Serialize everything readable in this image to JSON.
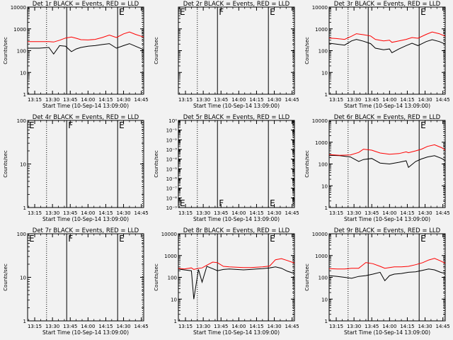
{
  "x_axis": {
    "ticks": [
      "13:15",
      "13:30",
      "13:45",
      "14:00",
      "14:15",
      "14:30",
      "14:45"
    ],
    "label": "Start Time (10-Sep-14 13:09:00)"
  },
  "colors": {
    "events": "#000000",
    "lld": "#ff0000",
    "background": "#f2f2f2"
  },
  "chart_data": [
    {
      "type": "line",
      "title": "Det 1r BLACK = Events, RED = LLD",
      "ylabel": "Counts/sec",
      "yscale": "log",
      "ylim": [
        1,
        10000
      ],
      "ytick_labels": [
        "1",
        "10",
        "100",
        "1000",
        "10000"
      ],
      "markers": [
        "F",
        "E"
      ],
      "x": [
        "13:09",
        "13:18",
        "13:19",
        "13:27",
        "13:31",
        "13:36",
        "13:41",
        "13:46",
        "13:50",
        "13:54",
        "14:00",
        "14:06",
        "14:12",
        "14:18",
        "14:24",
        "14:30",
        "14:35",
        "14:40",
        "14:47"
      ],
      "series": [
        {
          "name": "Events",
          "values": [
            130,
            130,
            130,
            140,
            70,
            170,
            160,
            90,
            120,
            140,
            160,
            170,
            190,
            210,
            130,
            170,
            210,
            160,
            110
          ]
        },
        {
          "name": "LLD",
          "values": [
            260,
            260,
            260,
            260,
            250,
            300,
            380,
            420,
            370,
            320,
            310,
            330,
            400,
            520,
            400,
            590,
            720,
            560,
            420
          ]
        }
      ]
    },
    {
      "type": "line",
      "title": "Det 2r BLACK = Events, RED = LLD",
      "ylabel": "Counts/sec",
      "yscale": "log",
      "ylim": [
        1,
        10000
      ],
      "ytick_labels": [],
      "markers": [
        "E",
        "F",
        "E"
      ],
      "x": [],
      "series": []
    },
    {
      "type": "line",
      "title": "Det 3r BLACK = Events, RED = LLD",
      "ylabel": "Counts/sec",
      "yscale": "log",
      "ylim": [
        1,
        10000
      ],
      "ytick_labels": [
        "1",
        "10",
        "100",
        "1000",
        "10000"
      ],
      "markers": [
        "E"
      ],
      "x": [
        "13:09",
        "13:15",
        "13:22",
        "13:28",
        "13:32",
        "13:38",
        "13:44",
        "13:48",
        "13:55",
        "14:00",
        "14:02",
        "14:08",
        "14:14",
        "14:19",
        "14:24",
        "14:31",
        "14:36",
        "14:42",
        "14:47"
      ],
      "series": [
        {
          "name": "Events",
          "values": [
            220,
            200,
            180,
            280,
            330,
            270,
            210,
            130,
            110,
            120,
            80,
            120,
            170,
            220,
            170,
            260,
            320,
            260,
            200
          ]
        },
        {
          "name": "LLD",
          "values": [
            380,
            360,
            330,
            460,
            600,
            540,
            470,
            330,
            280,
            300,
            240,
            280,
            330,
            400,
            370,
            560,
            720,
            600,
            460
          ]
        }
      ]
    },
    {
      "type": "line",
      "title": "Det 4r BLACK = Events, RED = LLD",
      "ylabel": "Counts/sec",
      "yscale": "log",
      "ylim": [
        1,
        100
      ],
      "ytick_labels": [
        "1",
        "10",
        "100"
      ],
      "markers": [
        "E",
        "F",
        "E"
      ],
      "x": [],
      "series": []
    },
    {
      "type": "line",
      "title": "Det 5r BLACK = Events, RED = LLD",
      "ylabel": "Counts/sec",
      "yscale": "log",
      "ylim": [
        1e-09,
        1
      ],
      "ytick_labels": [
        "10⁰",
        "10⁻¹",
        "10⁻²",
        "10⁻³",
        "10⁻⁴",
        "10⁻⁵",
        "10⁻⁶",
        "10⁻⁷",
        "10⁻⁸",
        "10⁻⁹"
      ],
      "markers": [
        "E",
        "F",
        "E"
      ],
      "x": [],
      "series": []
    },
    {
      "type": "line",
      "title": "Det 6r BLACK = Events, RED = LLD",
      "ylabel": "Counts/sec",
      "yscale": "log",
      "ylim": [
        1,
        10000
      ],
      "ytick_labels": [
        "1",
        "10",
        "100",
        "1000",
        "10000"
      ],
      "markers": [
        "E"
      ],
      "x": [
        "13:09",
        "13:18",
        "13:27",
        "13:34",
        "13:38",
        "13:45",
        "13:52",
        "14:00",
        "14:08",
        "14:14",
        "14:16",
        "14:22",
        "14:27",
        "14:32",
        "14:38",
        "14:44",
        "14:47"
      ],
      "series": [
        {
          "name": "Events",
          "values": [
            250,
            240,
            210,
            130,
            160,
            180,
            110,
            100,
            120,
            140,
            70,
            130,
            170,
            210,
            240,
            180,
            140
          ]
        },
        {
          "name": "LLD",
          "values": [
            270,
            250,
            260,
            340,
            480,
            430,
            320,
            280,
            300,
            360,
            330,
            400,
            480,
            640,
            760,
            560,
            430
          ]
        }
      ]
    },
    {
      "type": "line",
      "title": "Det 7r BLACK = Events, RED = LLD",
      "ylabel": "Counts/sec",
      "yscale": "log",
      "ylim": [
        1,
        100
      ],
      "ytick_labels": [
        "1",
        "10",
        "100"
      ],
      "markers": [
        "E",
        "F",
        "E"
      ],
      "x": [],
      "series": []
    },
    {
      "type": "line",
      "title": "Det 8r BLACK = Events, RED = LLD",
      "ylabel": "Counts/sec",
      "yscale": "log",
      "ylim": [
        1,
        10000
      ],
      "ytick_labels": [
        "1",
        "10",
        "100",
        "1000",
        "10000"
      ],
      "markers": [
        "E"
      ],
      "x": [
        "13:09",
        "13:14",
        "13:20",
        "13:22",
        "13:26",
        "13:29",
        "13:33",
        "13:38",
        "13:42",
        "13:47",
        "13:52",
        "13:58",
        "14:04",
        "14:10",
        "14:15",
        "14:20",
        "14:26",
        "14:31",
        "14:36",
        "14:41",
        "14:47"
      ],
      "series": [
        {
          "name": "Events",
          "values": [
            240,
            220,
            200,
            10,
            230,
            60,
            320,
            250,
            200,
            230,
            240,
            230,
            220,
            230,
            240,
            250,
            270,
            300,
            260,
            190,
            150
          ]
        },
        {
          "name": "LLD",
          "values": [
            260,
            240,
            270,
            230,
            260,
            270,
            360,
            500,
            470,
            320,
            300,
            290,
            280,
            280,
            290,
            300,
            330,
            640,
            720,
            590,
            450
          ]
        }
      ]
    },
    {
      "type": "line",
      "title": "Det 9r BLACK = Events, RED = LLD",
      "ylabel": "Counts/sec",
      "yscale": "log",
      "ylim": [
        1,
        10000
      ],
      "ytick_labels": [
        "1",
        "10",
        "100",
        "1000",
        "10000"
      ],
      "markers": [
        "E"
      ],
      "x": [
        "13:09",
        "13:16",
        "13:22",
        "13:28",
        "13:34",
        "13:40",
        "13:46",
        "13:52",
        "13:56",
        "14:00",
        "14:04",
        "14:10",
        "14:16",
        "14:22",
        "14:28",
        "14:33",
        "14:38",
        "14:43",
        "14:47"
      ],
      "series": [
        {
          "name": "Events",
          "values": [
            120,
            110,
            100,
            90,
            110,
            120,
            140,
            170,
            70,
            120,
            140,
            150,
            170,
            180,
            210,
            240,
            220,
            170,
            150
          ]
        },
        {
          "name": "LLD",
          "values": [
            250,
            240,
            240,
            260,
            260,
            480,
            420,
            320,
            260,
            280,
            300,
            300,
            320,
            380,
            470,
            620,
            740,
            570,
            440
          ]
        }
      ]
    }
  ]
}
